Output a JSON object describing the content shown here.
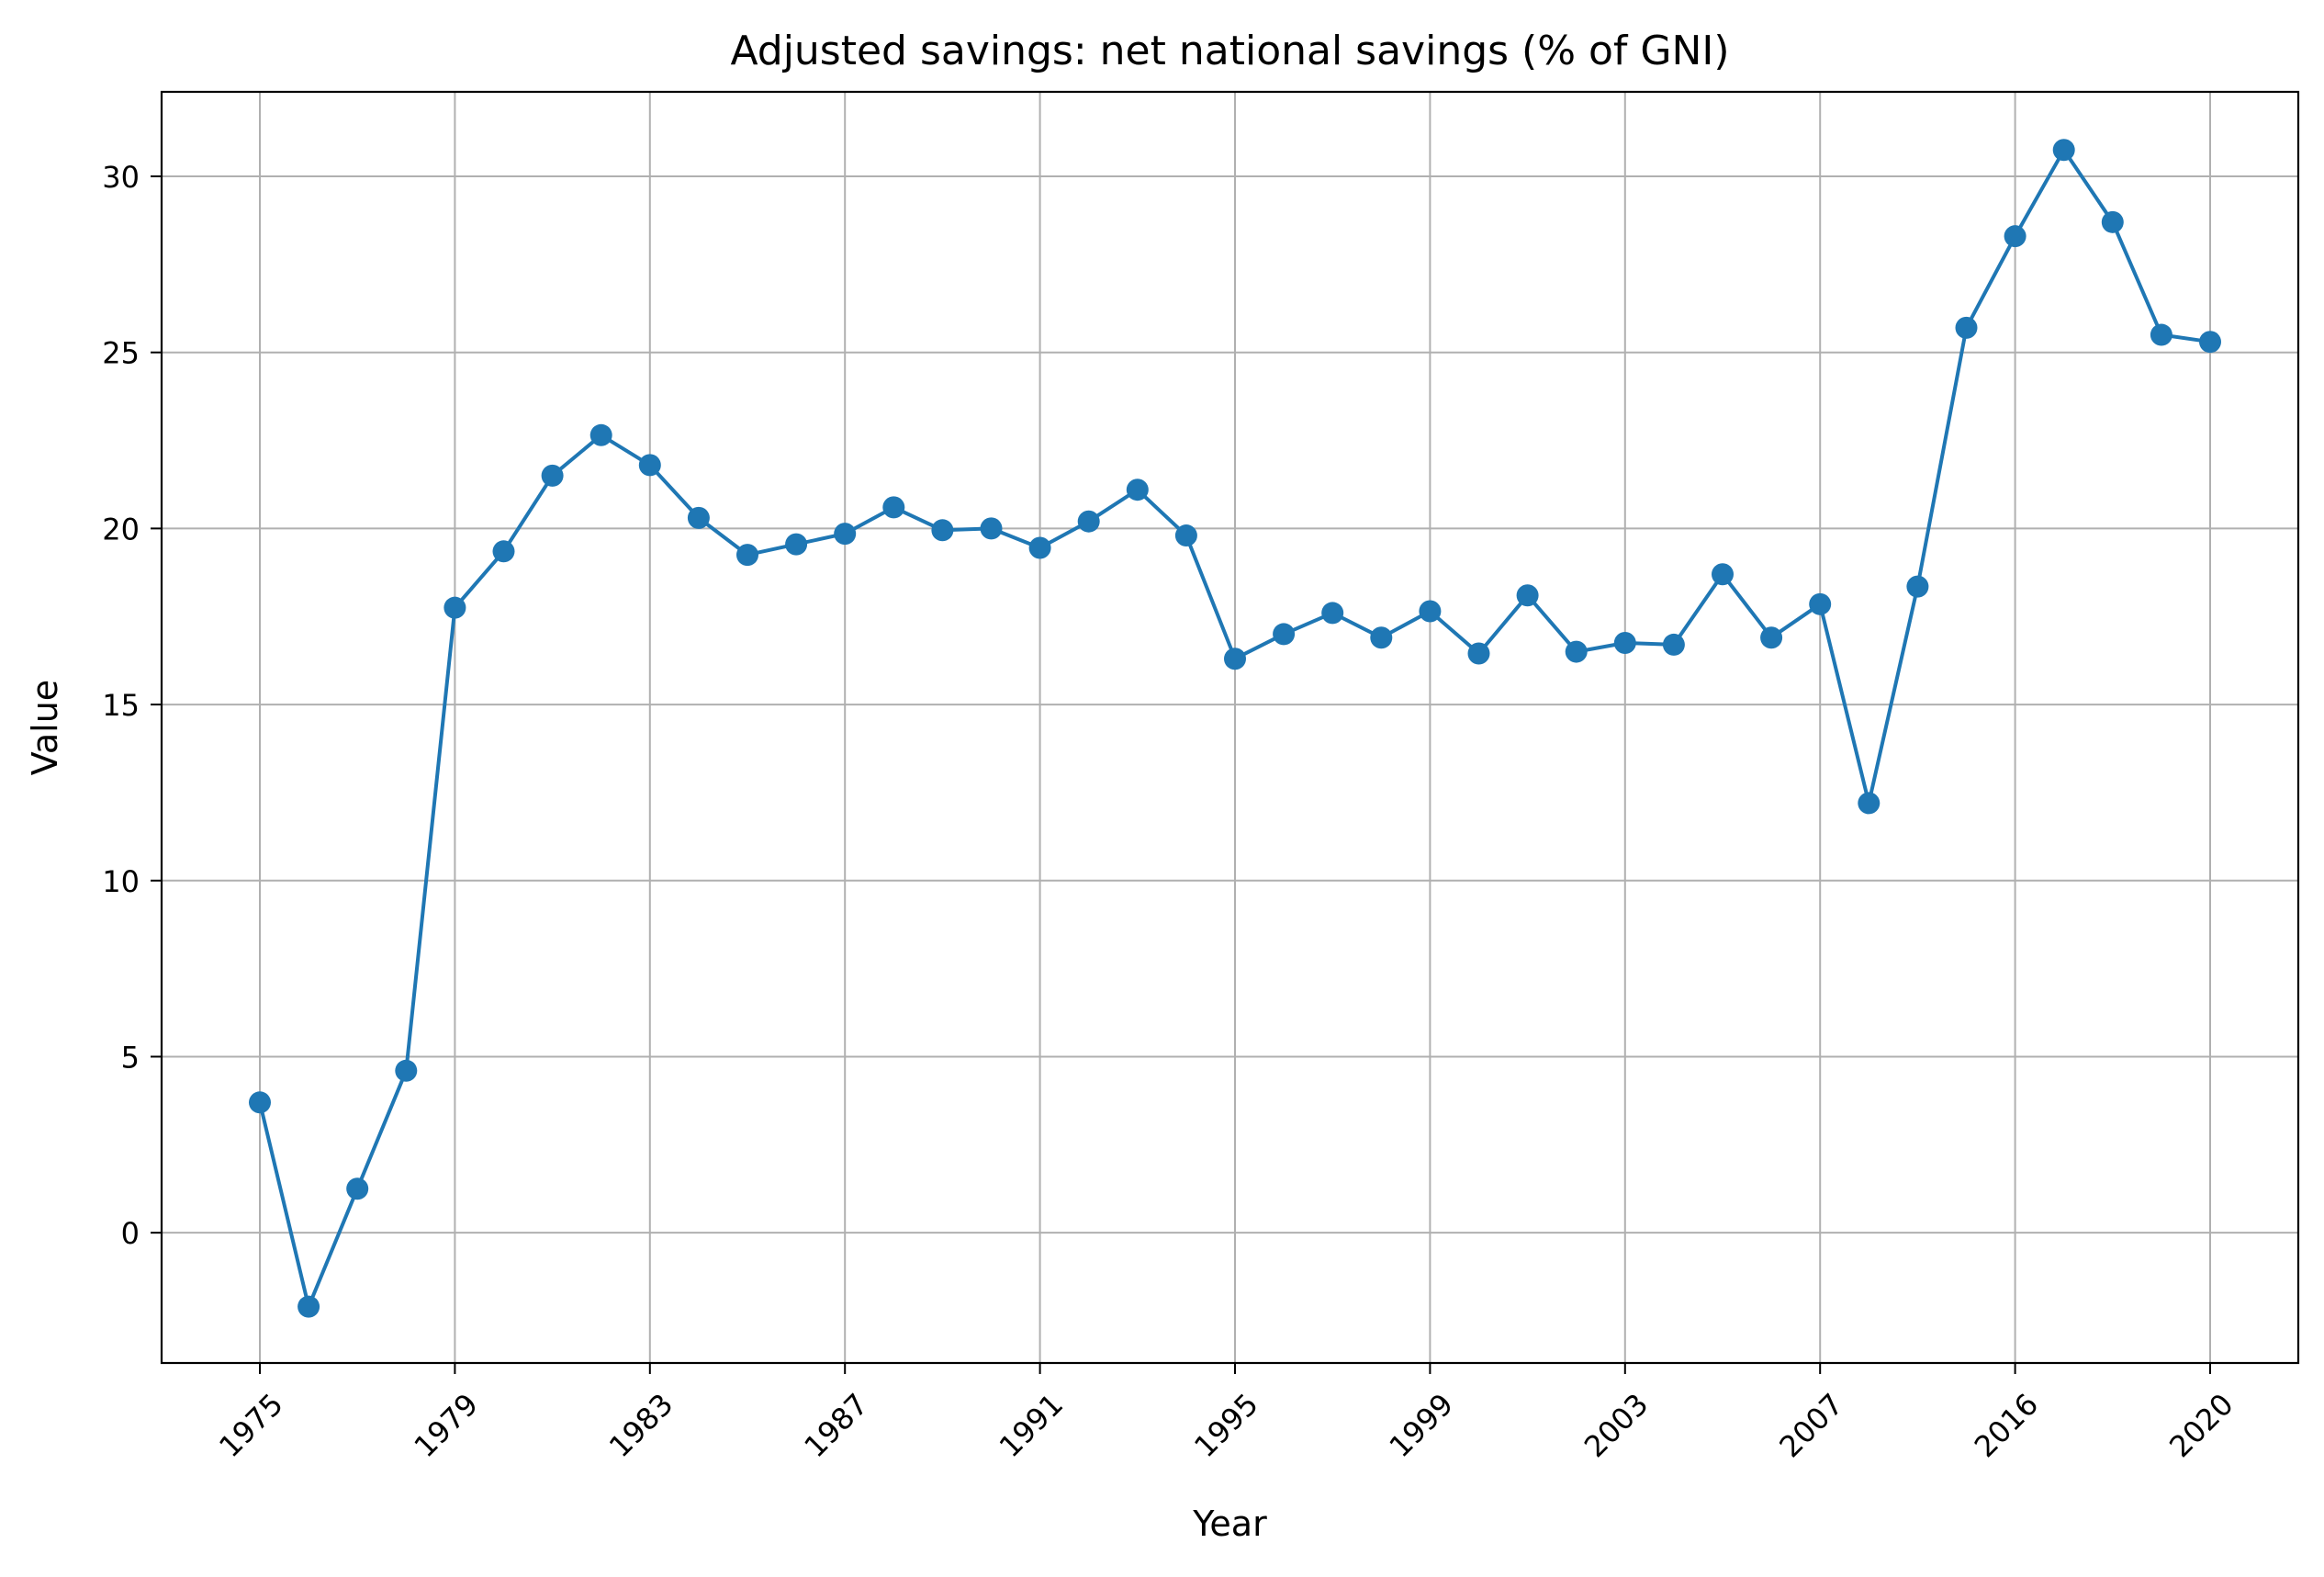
{
  "chart_data": {
    "type": "line",
    "title": "Adjusted savings: net national savings (% of GNI)",
    "xlabel": "Year",
    "ylabel": "Value",
    "x": [
      "1975",
      "1976",
      "1977",
      "1978",
      "1979",
      "1980",
      "1981",
      "1982",
      "1983",
      "1984",
      "1985",
      "1986",
      "1987",
      "1988",
      "1989",
      "1990",
      "1991",
      "1992",
      "1993",
      "1994",
      "1995",
      "1996",
      "1997",
      "1998",
      "1999",
      "2000",
      "2001",
      "2002",
      "2003",
      "2004",
      "2005",
      "2006",
      "2007",
      "2008",
      "2009",
      "2015",
      "2016",
      "2017",
      "2018",
      "2019",
      "2020"
    ],
    "x_ticks": [
      "1975",
      "1979",
      "1983",
      "1987",
      "1991",
      "1995",
      "1999",
      "2003",
      "2007",
      "2016",
      "2020"
    ],
    "y_ticks": [
      0,
      5,
      10,
      15,
      20,
      25,
      30
    ],
    "ylim": [
      -3.7,
      32.4
    ],
    "grid": true,
    "marker": "circle",
    "series": [
      {
        "name": "",
        "color": "#1f77b4",
        "values": [
          3.7,
          -2.1,
          1.25,
          4.6,
          17.75,
          19.35,
          21.5,
          22.65,
          21.8,
          20.3,
          19.25,
          19.55,
          19.85,
          20.6,
          19.95,
          20.0,
          19.45,
          20.2,
          21.1,
          19.8,
          16.3,
          17.0,
          17.6,
          16.9,
          17.65,
          16.45,
          18.1,
          16.5,
          16.75,
          16.7,
          18.7,
          16.9,
          17.85,
          12.2,
          18.35,
          25.7,
          28.3,
          30.75,
          28.7,
          25.5,
          25.3
        ]
      }
    ]
  }
}
